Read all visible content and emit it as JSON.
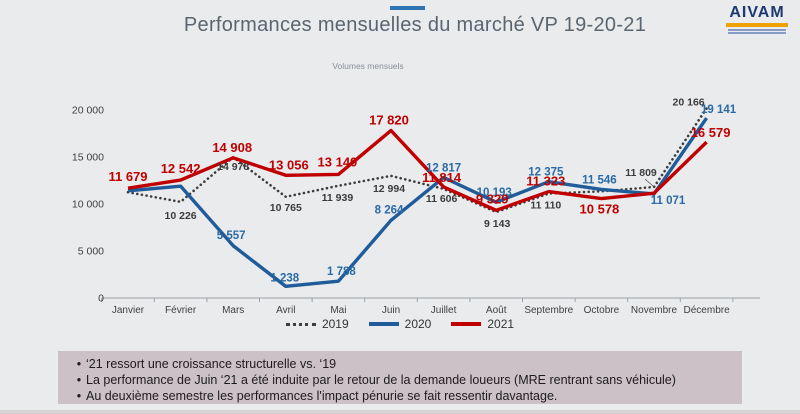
{
  "header": {
    "title": "Performances mensuelles du marché VP 19-20-21",
    "accent_color": "#2e75b6",
    "logo": {
      "text": "AIVAM",
      "text_color": "#1d3970",
      "bar_color": "#f0a202"
    }
  },
  "chart_data": {
    "type": "line",
    "title": "Volumes mensuels",
    "categories": [
      "Janvier",
      "Février",
      "Mars",
      "Avril",
      "Mai",
      "Juin",
      "Juillet",
      "Août",
      "Septembre",
      "Octobre",
      "Novembre",
      "Décembre"
    ],
    "ylim": [
      0,
      20000
    ],
    "yticks": [
      0,
      5000,
      10000,
      15000,
      20000
    ],
    "ytick_labels": [
      "0",
      "5 000",
      "10 000",
      "15 000",
      "20 000"
    ],
    "grid": false,
    "legend_position": "bottom",
    "series": [
      {
        "name": "2019",
        "style": "dotted",
        "color": "#3d3d3d",
        "label_color": "#3b3b3b",
        "values": [
          11250,
          10226,
          14978,
          10765,
          11939,
          12994,
          11606,
          9143,
          11110,
          11350,
          11809,
          20166
        ],
        "labels": [
          null,
          "10 226",
          "14 978",
          "10 765",
          "11 939",
          "12 994",
          "11 606",
          "9 143",
          "11 110",
          null,
          "11 809",
          "20 166"
        ]
      },
      {
        "name": "2020",
        "style": "solid",
        "color": "#1f5c99",
        "label_color": "#2a6aa5",
        "values": [
          11400,
          11900,
          5557,
          1238,
          1788,
          8264,
          12817,
          10193,
          12375,
          11546,
          11071,
          19141
        ],
        "labels": [
          null,
          null,
          "5 557",
          "1 238",
          "1 788",
          "8 264",
          "12 817",
          "10 193",
          "12 375",
          "11 546",
          "11 071",
          "19 141"
        ]
      },
      {
        "name": "2021",
        "style": "solid",
        "color": "#c00000",
        "label_color": "#c00000",
        "values": [
          11679,
          12542,
          14908,
          13056,
          13140,
          17820,
          11814,
          9329,
          11323,
          10578,
          11150,
          16579
        ],
        "labels": [
          "11 679",
          "12 542",
          "14 908",
          "13 056",
          "13 140",
          "17 820",
          "11 814",
          "9 329",
          "11 323",
          "10 578",
          null,
          "16 579"
        ]
      }
    ]
  },
  "notes": {
    "bg_color": "#cbc1c7",
    "items": [
      "‘21 ressort une croissance structurelle vs. ‘19",
      "La performance de Juin ‘21 a été induite par le retour de la demande loueurs (MRE rentrant sans véhicule)",
      "Au deuxième semestre les performances l'impact pénurie se fait ressentir davantage."
    ]
  }
}
